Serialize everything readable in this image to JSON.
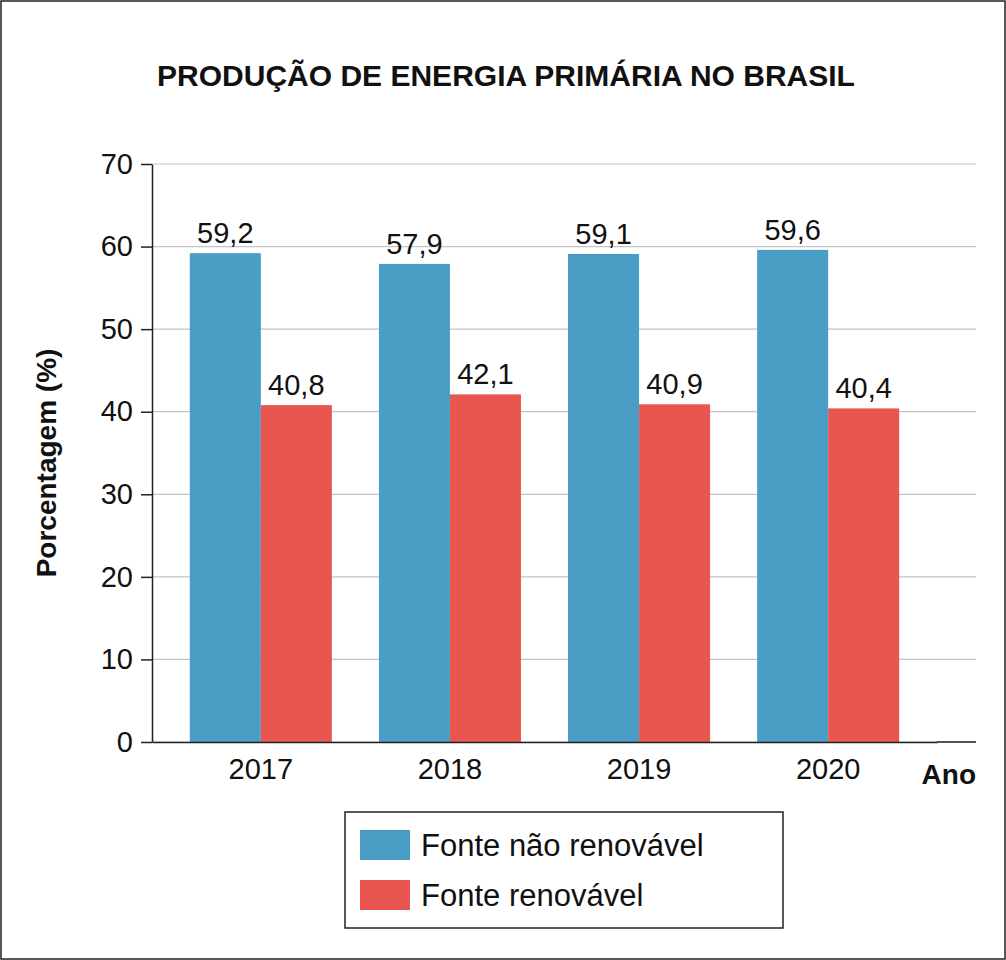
{
  "chart_data": {
    "type": "bar",
    "title": "PRODUÇÃO DE ENERGIA PRIMÁRIA NO BRASIL",
    "x_label": "Ano",
    "y_label": "Porcentagem (%)",
    "categories": [
      "2017",
      "2018",
      "2019",
      "2020"
    ],
    "series": [
      {
        "name": "Fonte não renovável",
        "color": "#4a9dc5",
        "values": [
          59.2,
          57.9,
          59.1,
          59.6
        ],
        "value_labels": [
          "59,2",
          "57,9",
          "59,1",
          "59,6"
        ]
      },
      {
        "name": "Fonte renovável",
        "color": "#e9554f",
        "values": [
          40.8,
          42.1,
          40.9,
          40.4
        ],
        "value_labels": [
          "40,8",
          "42,1",
          "40,9",
          "40,4"
        ]
      }
    ],
    "ylim": [
      0,
      70
    ],
    "yticks": [
      0,
      10,
      20,
      30,
      40,
      50,
      60,
      70
    ],
    "grid": true,
    "data_labels": true,
    "legend": "bottom"
  }
}
